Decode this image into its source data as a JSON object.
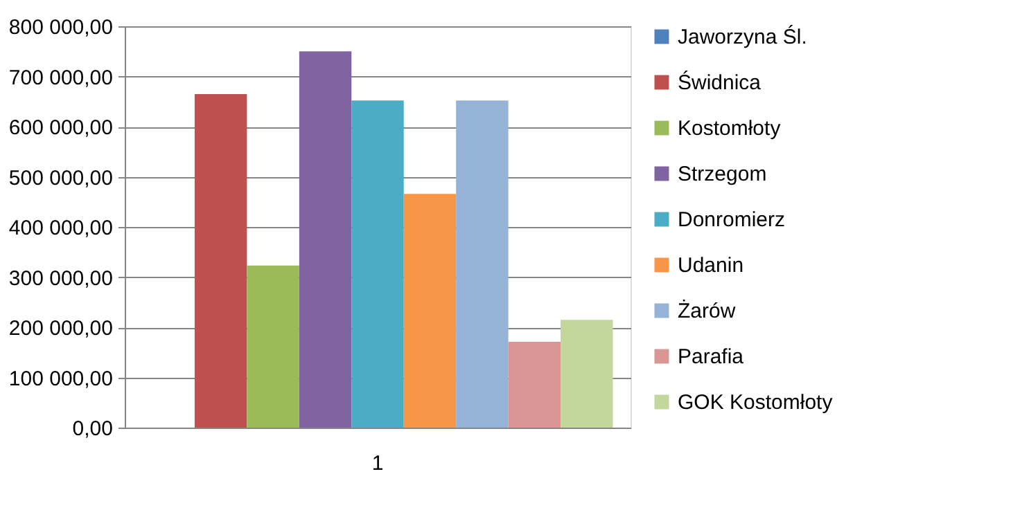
{
  "chart_data": {
    "type": "bar",
    "categories": [
      "1"
    ],
    "series": [
      {
        "name": "Jaworzyna Śl.",
        "color": "#4f81bd",
        "values": [
          0
        ]
      },
      {
        "name": "Świdnica",
        "color": "#c0504d",
        "values": [
          665000
        ]
      },
      {
        "name": "Kostomłoty",
        "color": "#9bbb59",
        "values": [
          323000
        ]
      },
      {
        "name": "Strzegom",
        "color": "#8064a2",
        "values": [
          750000
        ]
      },
      {
        "name": "Donromierz",
        "color": "#4bacc6",
        "values": [
          652000
        ]
      },
      {
        "name": "Udanin",
        "color": "#f79646",
        "values": [
          466000
        ]
      },
      {
        "name": "Żarów",
        "color": "#95b3d7",
        "values": [
          652000
        ]
      },
      {
        "name": "Parafia",
        "color": "#d99694",
        "values": [
          171000
        ]
      },
      {
        "name": "GOK Kostomłoty",
        "color": "#c3d69b",
        "values": [
          215000
        ]
      }
    ],
    "ylim": [
      0,
      800000
    ],
    "yticks": [
      {
        "value": 0,
        "label": "0,00"
      },
      {
        "value": 100000,
        "label": "100 000,00"
      },
      {
        "value": 200000,
        "label": "200 000,00"
      },
      {
        "value": 300000,
        "label": "300 000,00"
      },
      {
        "value": 400000,
        "label": "400 000,00"
      },
      {
        "value": 500000,
        "label": "500 000,00"
      },
      {
        "value": 600000,
        "label": "600 000,00"
      },
      {
        "value": 700000,
        "label": "700 000,00"
      },
      {
        "value": 800000,
        "label": "800 000,00"
      }
    ],
    "grid": "y",
    "legend": "right"
  }
}
